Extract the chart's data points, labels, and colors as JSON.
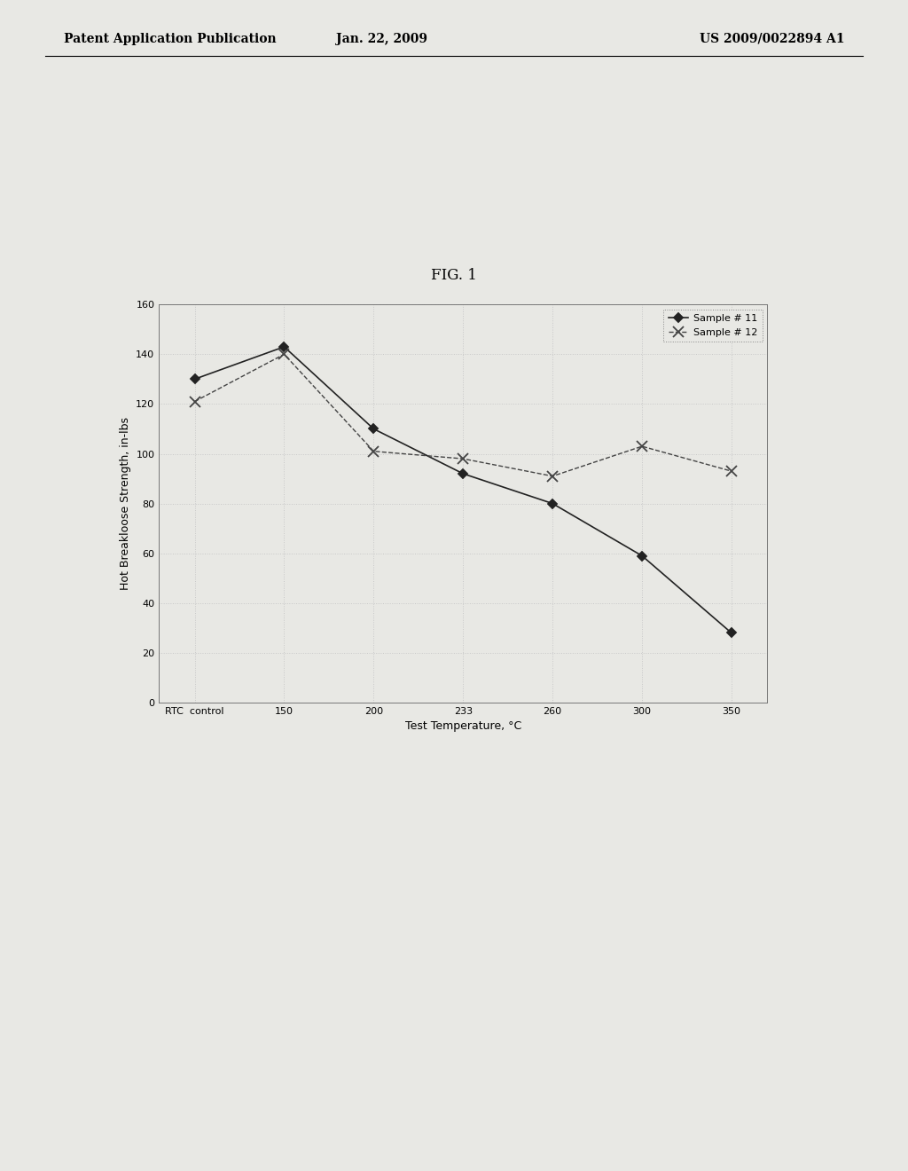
{
  "title": "FIG. 1",
  "xlabel": "Test Temperature, °C",
  "ylabel": "Hot Breakloose Strength, in-lbs",
  "x_labels": [
    "RTC  control",
    "150",
    "200",
    "233",
    "260",
    "300",
    "350"
  ],
  "x_positions": [
    0,
    1,
    2,
    3,
    4,
    5,
    6
  ],
  "series": [
    {
      "label": "Sample # 11",
      "y": [
        130,
        143,
        110,
        92,
        80,
        59,
        28
      ],
      "color": "#222222",
      "linestyle": "-",
      "marker": "D",
      "markersize": 5,
      "linewidth": 1.2
    },
    {
      "label": "Sample # 12",
      "y": [
        121,
        140,
        101,
        98,
        91,
        103,
        93
      ],
      "color": "#444444",
      "linestyle": "--",
      "marker": "x",
      "markersize": 8,
      "linewidth": 1.0
    }
  ],
  "ylim": [
    0,
    160
  ],
  "yticks": [
    0,
    20,
    40,
    60,
    80,
    100,
    120,
    140,
    160
  ],
  "grid_color": "#c8c8c8",
  "background_color": "#e8e8e4",
  "plot_bg_color": "#e8e8e4",
  "legend_fontsize": 8,
  "axis_label_fontsize": 9,
  "tick_fontsize": 8,
  "title_fontsize": 12,
  "header_text1": "Patent Application Publication",
  "header_text2": "Jan. 22, 2009",
  "header_text3": "US 2009/0022894 A1"
}
